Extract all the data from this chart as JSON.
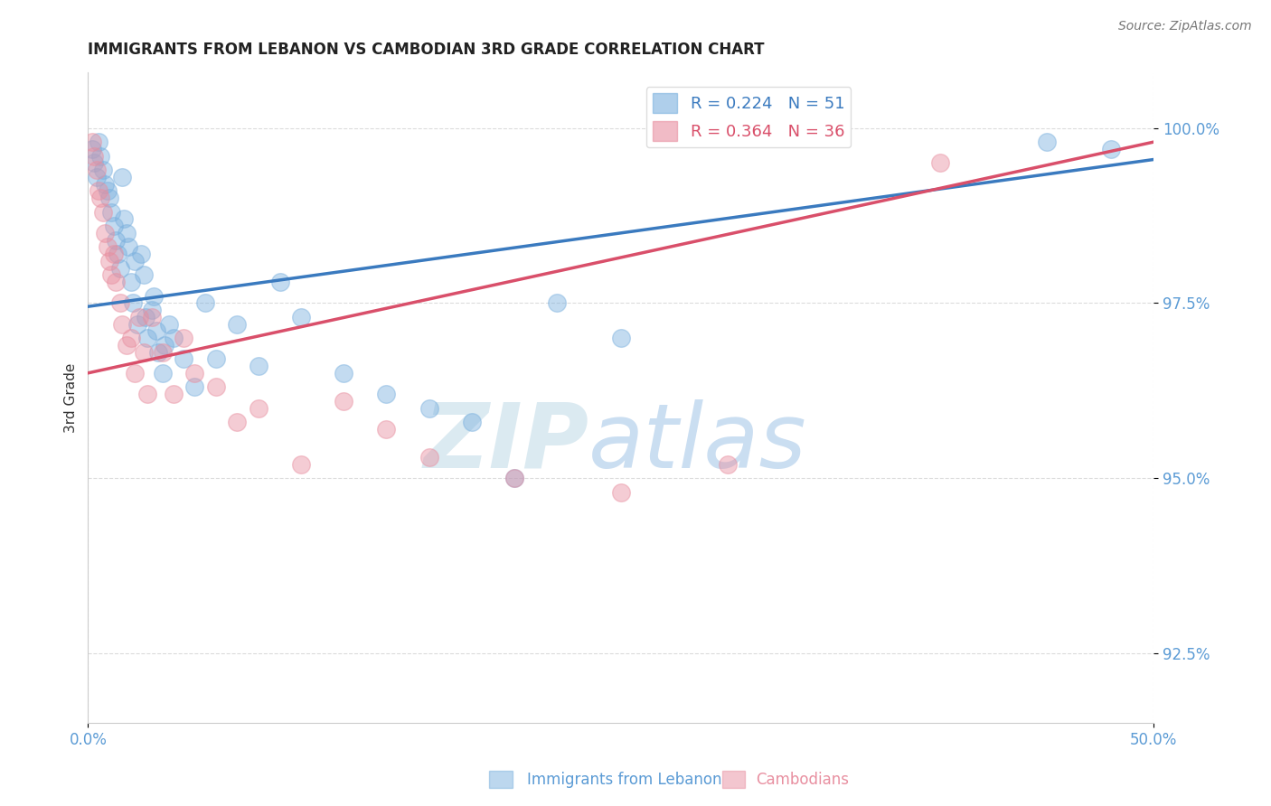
{
  "title": "IMMIGRANTS FROM LEBANON VS CAMBODIAN 3RD GRADE CORRELATION CHART",
  "source_text": "Source: ZipAtlas.com",
  "xlabel_blue": "Immigrants from Lebanon",
  "xlabel_pink": "Cambodians",
  "ylabel": "3rd Grade",
  "R_blue": 0.224,
  "N_blue": 51,
  "R_pink": 0.364,
  "N_pink": 36,
  "xlim": [
    0.0,
    50.0
  ],
  "ylim": [
    91.5,
    100.8
  ],
  "yticks": [
    92.5,
    95.0,
    97.5,
    100.0
  ],
  "xticks": [
    0.0,
    50.0
  ],
  "blue_color": "#7ab0de",
  "pink_color": "#e88fa0",
  "blue_line_color": "#3a7abf",
  "pink_line_color": "#d94f6a",
  "axis_color": "#5b9bd5",
  "background_color": "#ffffff",
  "blue_scatter_x": [
    0.2,
    0.3,
    0.4,
    0.5,
    0.6,
    0.7,
    0.8,
    0.9,
    1.0,
    1.1,
    1.2,
    1.3,
    1.4,
    1.5,
    1.6,
    1.7,
    1.8,
    1.9,
    2.0,
    2.1,
    2.2,
    2.3,
    2.5,
    2.6,
    2.7,
    2.8,
    3.0,
    3.1,
    3.2,
    3.3,
    3.5,
    3.6,
    3.8,
    4.0,
    4.5,
    5.0,
    5.5,
    6.0,
    7.0,
    8.0,
    9.0,
    10.0,
    12.0,
    14.0,
    16.0,
    18.0,
    20.0,
    22.0,
    25.0,
    45.0,
    48.0
  ],
  "blue_scatter_y": [
    99.7,
    99.5,
    99.3,
    99.8,
    99.6,
    99.4,
    99.2,
    99.1,
    99.0,
    98.8,
    98.6,
    98.4,
    98.2,
    98.0,
    99.3,
    98.7,
    98.5,
    98.3,
    97.8,
    97.5,
    98.1,
    97.2,
    98.2,
    97.9,
    97.3,
    97.0,
    97.4,
    97.6,
    97.1,
    96.8,
    96.5,
    96.9,
    97.2,
    97.0,
    96.7,
    96.3,
    97.5,
    96.7,
    97.2,
    96.6,
    97.8,
    97.3,
    96.5,
    96.2,
    96.0,
    95.8,
    95.0,
    97.5,
    97.0,
    99.8,
    99.7
  ],
  "pink_scatter_x": [
    0.2,
    0.3,
    0.4,
    0.5,
    0.6,
    0.7,
    0.8,
    0.9,
    1.0,
    1.1,
    1.2,
    1.3,
    1.5,
    1.6,
    1.8,
    2.0,
    2.2,
    2.4,
    2.6,
    2.8,
    3.0,
    3.5,
    4.0,
    4.5,
    5.0,
    6.0,
    7.0,
    8.0,
    10.0,
    12.0,
    14.0,
    16.0,
    20.0,
    25.0,
    30.0,
    40.0
  ],
  "pink_scatter_y": [
    99.8,
    99.6,
    99.4,
    99.1,
    99.0,
    98.8,
    98.5,
    98.3,
    98.1,
    97.9,
    98.2,
    97.8,
    97.5,
    97.2,
    96.9,
    97.0,
    96.5,
    97.3,
    96.8,
    96.2,
    97.3,
    96.8,
    96.2,
    97.0,
    96.5,
    96.3,
    95.8,
    96.0,
    95.2,
    96.1,
    95.7,
    95.3,
    95.0,
    94.8,
    95.2,
    99.5
  ],
  "blue_trendline": [
    97.45,
    99.55
  ],
  "pink_trendline": [
    96.5,
    99.8
  ]
}
